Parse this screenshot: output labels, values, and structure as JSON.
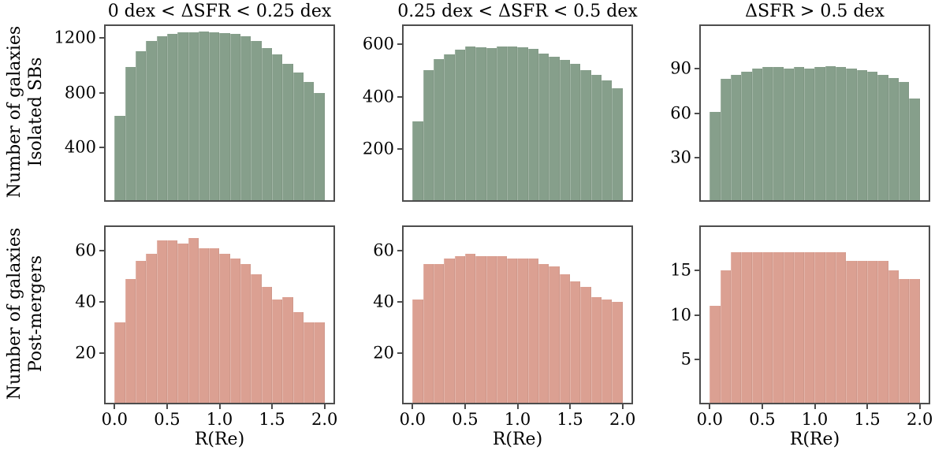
{
  "figure": {
    "background": "#ffffff",
    "frame_color": "#4d4d4d",
    "text_color": "#000000",
    "xlabel": "R(Re)",
    "x_ticks": [
      "0.0",
      "0.5",
      "1.0",
      "1.5",
      "2.0"
    ],
    "x_tick_values": [
      0.0,
      0.5,
      1.0,
      1.5,
      2.0
    ],
    "columns": [
      {
        "title": "0 dex < ΔSFR < 0.25 dex"
      },
      {
        "title": "0.25 dex < ΔSFR < 0.5 dex"
      },
      {
        "title": "ΔSFR > 0.5 dex"
      }
    ],
    "rows": [
      {
        "ylabel_line1": "Number of galaxies",
        "ylabel_line2": "Isolated SBs",
        "color": "#869F8B"
      },
      {
        "ylabel_line1": "Number of galaxies",
        "ylabel_line2": "Post-mergers",
        "color": "#DBA092"
      }
    ]
  },
  "chart_data": [
    {
      "type": "bar",
      "subtype": "histogram",
      "row": 0,
      "col": 0,
      "title": "0 dex < ΔSFR < 0.25 dex",
      "series": "Isolated SBs",
      "xlabel": "",
      "bin_start": 0.0,
      "bin_width": 0.1,
      "values": [
        630,
        990,
        1105,
        1180,
        1215,
        1228,
        1240,
        1245,
        1248,
        1245,
        1238,
        1228,
        1212,
        1180,
        1127,
        1079,
        1012,
        945,
        877,
        800
      ],
      "yticks": [
        400,
        800,
        1200
      ],
      "ylim": [
        0,
        1300
      ],
      "xlim": [
        -0.1,
        2.1
      ],
      "grid": false,
      "color": "#869F8B",
      "show_xticklabels": false
    },
    {
      "type": "bar",
      "subtype": "histogram",
      "row": 0,
      "col": 1,
      "title": "0.25 dex < ΔSFR < 0.5 dex",
      "series": "Isolated SBs",
      "xlabel": "",
      "bin_start": 0.0,
      "bin_width": 0.1,
      "values": [
        306,
        500,
        543,
        561,
        579,
        590,
        588,
        584,
        592,
        592,
        588,
        582,
        565,
        551,
        539,
        526,
        500,
        483,
        463,
        432
      ],
      "yticks": [
        200,
        400,
        600
      ],
      "ylim": [
        0,
        675
      ],
      "xlim": [
        -0.1,
        2.1
      ],
      "grid": false,
      "color": "#869F8B",
      "show_xticklabels": false
    },
    {
      "type": "bar",
      "subtype": "histogram",
      "row": 0,
      "col": 2,
      "title": "ΔSFR > 0.5 dex",
      "series": "Isolated SBs",
      "xlabel": "",
      "bin_start": 0.0,
      "bin_width": 0.1,
      "values": [
        61,
        83,
        86,
        88,
        90,
        91,
        91,
        90,
        91,
        90,
        91,
        92,
        91,
        90,
        89,
        88,
        86,
        84,
        81,
        70
      ],
      "yticks": [
        30,
        60,
        90
      ],
      "ylim": [
        0,
        120
      ],
      "xlim": [
        -0.1,
        2.1
      ],
      "grid": false,
      "color": "#869F8B",
      "show_xticklabels": false
    },
    {
      "type": "bar",
      "subtype": "histogram",
      "row": 1,
      "col": 0,
      "title": "",
      "series": "Post-mergers",
      "xlabel": "R(Re)",
      "bin_start": 0.0,
      "bin_width": 0.1,
      "values": [
        32,
        49,
        56,
        59,
        64,
        64,
        63,
        65,
        61,
        61,
        59,
        57,
        55,
        51,
        46,
        41,
        42,
        36,
        32,
        32
      ],
      "yticks": [
        20,
        40,
        60
      ],
      "ylim": [
        0,
        70
      ],
      "xlim": [
        -0.1,
        2.1
      ],
      "grid": false,
      "color": "#DBA092",
      "show_xticklabels": true
    },
    {
      "type": "bar",
      "subtype": "histogram",
      "row": 1,
      "col": 1,
      "title": "",
      "series": "Post-mergers",
      "xlabel": "R(Re)",
      "bin_start": 0.0,
      "bin_width": 0.1,
      "values": [
        41,
        55,
        55,
        57,
        58,
        59,
        58,
        58,
        58,
        57,
        57,
        57,
        55,
        54,
        51,
        48,
        46,
        42,
        41,
        40
      ],
      "yticks": [
        20,
        40,
        60
      ],
      "ylim": [
        0,
        70
      ],
      "xlim": [
        -0.1,
        2.1
      ],
      "grid": false,
      "color": "#DBA092",
      "show_xticklabels": true
    },
    {
      "type": "bar",
      "subtype": "histogram",
      "row": 1,
      "col": 2,
      "title": "",
      "series": "Post-mergers",
      "xlabel": "R(Re)",
      "bin_start": 0.0,
      "bin_width": 0.1,
      "values": [
        11,
        15,
        17,
        17,
        17,
        17,
        17,
        17,
        17,
        17,
        17,
        17,
        17,
        16,
        16,
        16,
        16,
        15,
        14,
        14
      ],
      "yticks": [
        5,
        10,
        15
      ],
      "ylim": [
        0,
        20
      ],
      "xlim": [
        -0.1,
        2.1
      ],
      "grid": false,
      "color": "#DBA092",
      "show_xticklabels": true
    }
  ]
}
